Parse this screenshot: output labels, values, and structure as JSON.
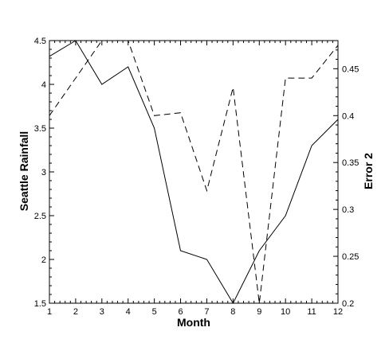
{
  "chart_data": {
    "type": "line",
    "xlabel": "Month",
    "ylabel": "Seattle Rainfall",
    "y2label": "Error 2",
    "xlim": [
      1,
      12
    ],
    "ylim": [
      1.5,
      4.5
    ],
    "y2lim": [
      0.2,
      0.48
    ],
    "x_ticks": [
      1,
      2,
      3,
      4,
      5,
      6,
      7,
      8,
      9,
      10,
      11,
      12
    ],
    "y_ticks": [
      "1.5",
      "2",
      "2.5",
      "3",
      "3.5",
      "4",
      "4.5"
    ],
    "y2_ticks": [
      "0.2",
      "0.25",
      "0.3",
      "0.35",
      "0.4",
      "0.45"
    ],
    "grid": false,
    "series": [
      {
        "axis": "left",
        "line_style": "solid",
        "color": "#000000",
        "x": [
          1,
          2,
          3,
          4,
          5,
          6,
          7,
          8,
          9,
          10,
          11,
          12
        ],
        "values": [
          4.32,
          4.5,
          4.0,
          4.2,
          3.5,
          2.1,
          2.0,
          1.5,
          2.1,
          2.5,
          3.3,
          3.6
        ]
      },
      {
        "axis": "right",
        "line_style": "dashed",
        "color": "#000000",
        "x": [
          1,
          2,
          3,
          4,
          5,
          6,
          7,
          8,
          9,
          10,
          11,
          12
        ],
        "values": [
          0.4,
          0.44,
          0.48,
          0.48,
          0.4,
          0.403,
          0.32,
          0.43,
          0.2,
          0.44,
          0.44,
          0.475
        ]
      }
    ]
  }
}
